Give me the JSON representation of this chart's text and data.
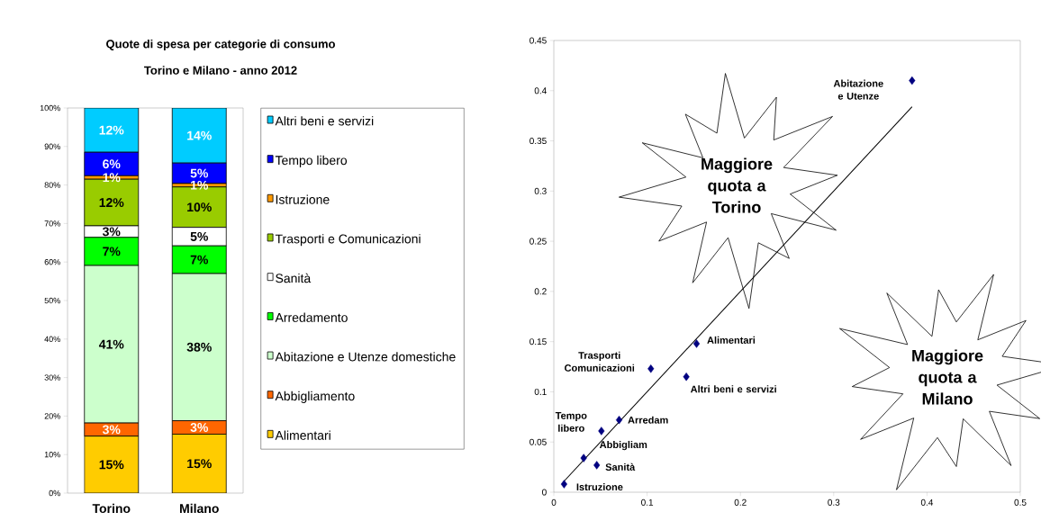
{
  "chart_data": [
    {
      "type": "bar",
      "stacked": true,
      "title": "Quote di spesa  per categorie di consumo",
      "subtitle": "Torino e Milano - anno 2012",
      "categories": [
        "Torino",
        "Milano"
      ],
      "series": [
        {
          "name": "Alimentari",
          "color": "#ffcc00",
          "values": [
            14.8,
            15.3
          ],
          "value_labels": [
            "15%",
            "15%"
          ]
        },
        {
          "name": "Abbigliamento",
          "color": "#ff6600",
          "values": [
            3.4,
            3.5
          ],
          "value_labels": [
            "3%",
            "3%"
          ]
        },
        {
          "name": "Abitazione e Utenze domestiche",
          "color": "#ccffcc",
          "values": [
            40.9,
            38.2
          ],
          "value_labels": [
            "41%",
            "38%"
          ]
        },
        {
          "name": "Arredamento",
          "color": "#00ff00",
          "values": [
            7.3,
            7.2
          ],
          "value_labels": [
            "7%",
            "7%"
          ]
        },
        {
          "name": "Sanità",
          "color": "#ffffff",
          "values": [
            3.0,
            4.8
          ],
          "value_labels": [
            "3%",
            "5%"
          ]
        },
        {
          "name": "Trasporti e Comunicazioni",
          "color": "#99cc00",
          "values": [
            12.1,
            10.5
          ],
          "value_labels": [
            "12%",
            "10%"
          ]
        },
        {
          "name": "Istruzione",
          "color": "#ff9900",
          "values": [
            0.9,
            0.9
          ],
          "value_labels": [
            "1%",
            "1%"
          ]
        },
        {
          "name": "Tempo libero",
          "color": "#0000ff",
          "values": [
            6.1,
            5.3
          ],
          "value_labels": [
            "6%",
            "5%"
          ]
        },
        {
          "name": "Altri beni e servizi",
          "color": "#00ccff",
          "values": [
            11.5,
            14.3
          ],
          "value_labels": [
            "12%",
            "14%"
          ]
        }
      ],
      "ylim": [
        0,
        100
      ],
      "yticks": [
        {
          "value": 0,
          "label": "0%"
        },
        {
          "value": 10,
          "label": "10%"
        },
        {
          "value": 20,
          "label": "20%"
        },
        {
          "value": 30,
          "label": "30%"
        },
        {
          "value": 40,
          "label": "40%"
        },
        {
          "value": 50,
          "label": "50%"
        },
        {
          "value": 60,
          "label": "60%"
        },
        {
          "value": 70,
          "label": "70%"
        },
        {
          "value": 80,
          "label": "80%"
        },
        {
          "value": 90,
          "label": "90%"
        },
        {
          "value": 100,
          "label": "100%"
        }
      ],
      "legend": "right"
    },
    {
      "type": "scatter",
      "series": [
        {
          "color": "#000080",
          "marker": "diamond",
          "x": [
            0.384,
            0.153,
            0.104,
            0.142,
            0.07,
            0.051,
            0.032,
            0.046,
            0.011
          ],
          "values": [
            0.41,
            0.148,
            0.123,
            0.115,
            0.072,
            0.061,
            0.034,
            0.027,
            0.008
          ]
        },
        {
          "type": "line",
          "color": "#000000",
          "x": [
            0.011,
            0.384
          ],
          "values": [
            0.011,
            0.384
          ]
        }
      ],
      "xlim": [
        0,
        0.5
      ],
      "ylim": [
        0,
        0.45
      ],
      "xticks": [
        0,
        0.1,
        0.2,
        0.3,
        0.4,
        0.5
      ],
      "yticks": [
        0,
        0.05,
        0.1,
        0.15,
        0.2,
        0.25,
        0.3,
        0.35,
        0.4,
        0.45
      ],
      "annotations": [
        "Maggiore quota a Torino",
        "Maggiore quota a Milano",
        {
          "text": "Abitazione e Utenze",
          "x": 0.384,
          "y": 0.41
        },
        {
          "text": "Alimentari",
          "x": 0.153,
          "y": 0.148
        },
        {
          "text": "Trasporti Comunicazioni",
          "x": 0.104,
          "y": 0.123
        },
        {
          "text": "Altri beni e servizi",
          "x": 0.142,
          "y": 0.115
        },
        {
          "text": "Arredam",
          "x": 0.07,
          "y": 0.072
        },
        {
          "text": "Tempo libero",
          "x": 0.051,
          "y": 0.061
        },
        {
          "text": "Abbigliam",
          "x": 0.032,
          "y": 0.034
        },
        {
          "text": "Sanità",
          "x": 0.046,
          "y": 0.027
        },
        {
          "text": "Istruzione",
          "x": 0.011,
          "y": 0.008
        }
      ]
    }
  ]
}
